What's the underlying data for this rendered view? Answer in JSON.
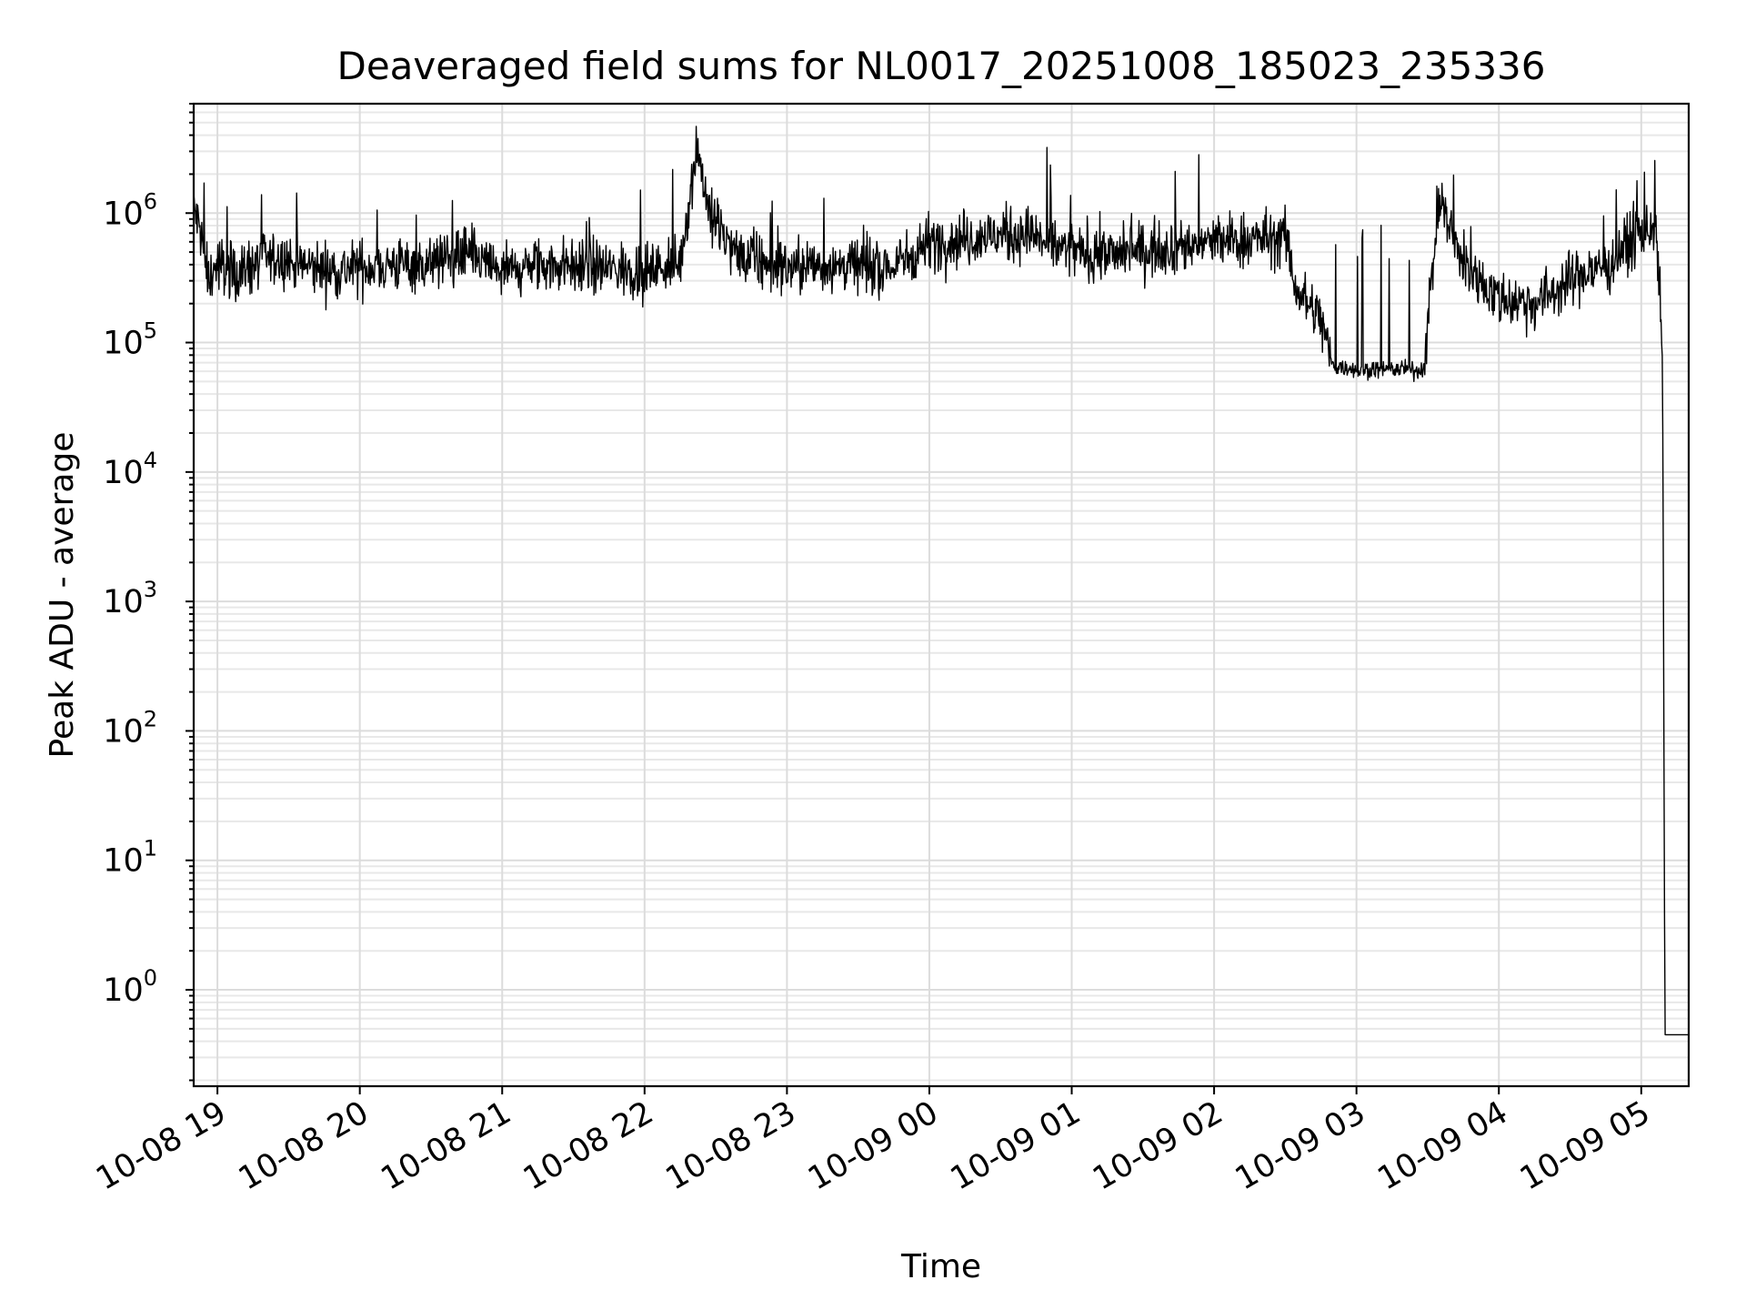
{
  "chart_data": {
    "type": "line",
    "title": "Deaveraged field sums for NL0017_20251008_185023_235336",
    "xlabel": "Time",
    "ylabel": "Peak ADU - average",
    "yscale": "log",
    "ylim": [
      0.18,
      7000000
    ],
    "xlim": [
      "2025-10-08 18:50",
      "2025-10-09 05:20"
    ],
    "grid": true,
    "x_ticks": [
      {
        "value": "2025-10-08 19:00",
        "label": "10-08 19"
      },
      {
        "value": "2025-10-08 20:00",
        "label": "10-08 20"
      },
      {
        "value": "2025-10-08 21:00",
        "label": "10-08 21"
      },
      {
        "value": "2025-10-08 22:00",
        "label": "10-08 22"
      },
      {
        "value": "2025-10-08 23:00",
        "label": "10-08 23"
      },
      {
        "value": "2025-10-09 00:00",
        "label": "10-09 00"
      },
      {
        "value": "2025-10-09 01:00",
        "label": "10-09 01"
      },
      {
        "value": "2025-10-09 02:00",
        "label": "10-09 02"
      },
      {
        "value": "2025-10-09 03:00",
        "label": "10-09 03"
      },
      {
        "value": "2025-10-09 04:00",
        "label": "10-09 04"
      },
      {
        "value": "2025-10-09 05:00",
        "label": "10-09 05"
      }
    ],
    "y_ticks": [
      {
        "value": 1,
        "base": "10",
        "exp": "0"
      },
      {
        "value": 10,
        "base": "10",
        "exp": "1"
      },
      {
        "value": 100,
        "base": "10",
        "exp": "2"
      },
      {
        "value": 1000,
        "base": "10",
        "exp": "3"
      },
      {
        "value": 10000,
        "base": "10",
        "exp": "4"
      },
      {
        "value": 100000,
        "base": "10",
        "exp": "5"
      },
      {
        "value": 1000000,
        "base": "10",
        "exp": "6"
      }
    ],
    "series": [
      {
        "color": "#000000",
        "points": [
          [
            "2025-10-08 18:50",
            1100000
          ],
          [
            "2025-10-08 18:53",
            700000
          ],
          [
            "2025-10-08 18:56",
            300000
          ],
          [
            "2025-10-08 19:00",
            400000
          ],
          [
            "2025-10-08 19:10",
            350000
          ],
          [
            "2025-10-08 19:20",
            450000
          ],
          [
            "2025-10-08 19:30",
            420000
          ],
          [
            "2025-10-08 19:40",
            380000
          ],
          [
            "2025-10-08 19:50",
            360000
          ],
          [
            "2025-10-08 20:00",
            380000
          ],
          [
            "2025-10-08 20:15",
            400000
          ],
          [
            "2025-10-08 20:30",
            410000
          ],
          [
            "2025-10-08 20:45",
            480000
          ],
          [
            "2025-10-08 21:00",
            350000
          ],
          [
            "2025-10-08 21:20",
            400000
          ],
          [
            "2025-10-08 21:40",
            380000
          ],
          [
            "2025-10-08 22:00",
            350000
          ],
          [
            "2025-10-08 22:15",
            420000
          ],
          [
            "2025-10-08 22:22",
            3300000
          ],
          [
            "2025-10-08 22:28",
            900000
          ],
          [
            "2025-10-08 22:40",
            450000
          ],
          [
            "2025-10-08 23:00",
            380000
          ],
          [
            "2025-10-08 23:20",
            400000
          ],
          [
            "2025-10-08 23:45",
            380000
          ],
          [
            "2025-10-09 00:00",
            600000
          ],
          [
            "2025-10-09 00:20",
            650000
          ],
          [
            "2025-10-09 00:40",
            700000
          ],
          [
            "2025-10-09 01:00",
            500000
          ],
          [
            "2025-10-09 01:20",
            480000
          ],
          [
            "2025-10-09 01:40",
            550000
          ],
          [
            "2025-10-09 02:00",
            600000
          ],
          [
            "2025-10-09 02:30",
            650000
          ],
          [
            "2025-10-09 02:35",
            250000
          ],
          [
            "2025-10-09 02:45",
            150000
          ],
          [
            "2025-10-09 02:50",
            65000
          ],
          [
            "2025-10-09 03:00",
            62000
          ],
          [
            "2025-10-09 03:20",
            62000
          ],
          [
            "2025-10-09 03:28",
            60000
          ],
          [
            "2025-10-09 03:35",
            1300000
          ],
          [
            "2025-10-09 03:45",
            400000
          ],
          [
            "2025-10-09 04:00",
            220000
          ],
          [
            "2025-10-09 04:15",
            200000
          ],
          [
            "2025-10-09 04:30",
            300000
          ],
          [
            "2025-10-09 04:45",
            400000
          ],
          [
            "2025-10-09 05:00",
            700000
          ],
          [
            "2025-10-09 05:06",
            800000
          ],
          [
            "2025-10-09 05:08",
            200000
          ],
          [
            "2025-10-09 05:09",
            60000
          ],
          [
            "2025-10-09 05:10",
            0.45
          ],
          [
            "2025-10-09 05:20",
            0.45
          ]
        ]
      }
    ]
  }
}
